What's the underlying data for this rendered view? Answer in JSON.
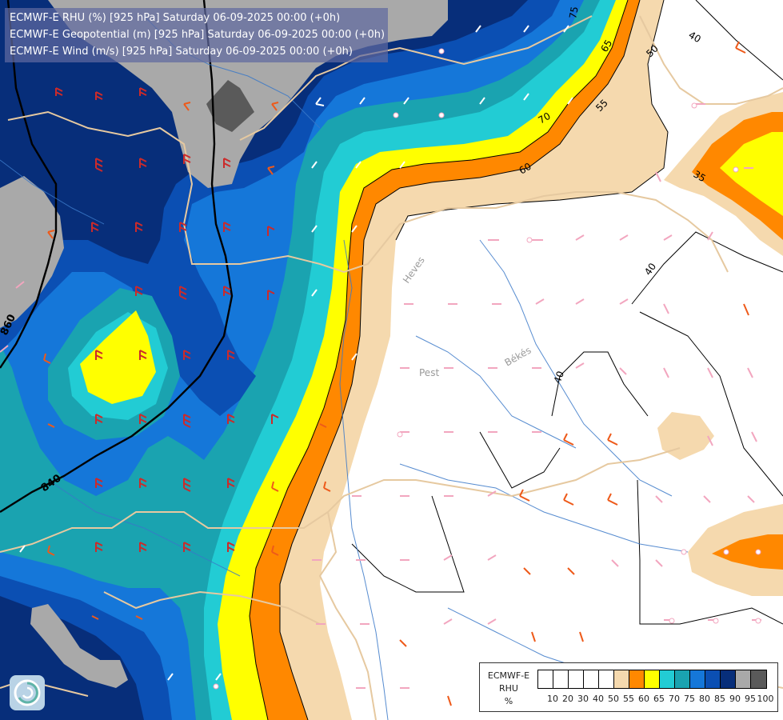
{
  "title": {
    "lines": [
      "ECMWF-E RHU (%) [925 hPa] Saturday 06-09-2025 00:00 (+0h)",
      "ECMWF-E Geopotential (m) [925 hPa] Saturday 06-09-2025 00:00 (+0h)",
      "ECMWF-E Wind (m/s) [925 hPa] Saturday 06-09-2025 00:00 (+0h)"
    ]
  },
  "legend": {
    "model": "ECMWF-E",
    "variable": "RHU",
    "unit": "%",
    "levels": [
      "10",
      "20",
      "30",
      "40",
      "50",
      "55",
      "60",
      "65",
      "70",
      "75",
      "80",
      "85",
      "90",
      "95",
      "100"
    ],
    "colors": [
      "#ffffff",
      "#ffffff",
      "#ffffff",
      "#ffffff",
      "#ffffff",
      "#f5d9ae",
      "#ff8800",
      "#ffff00",
      "#22ccd4",
      "#1aa3b0",
      "#1577d9",
      "#0b4fb3",
      "#072e7a",
      "#a9a9a9",
      "#5a5a5a"
    ]
  },
  "colors": {
    "rh55": "#f5d9ae",
    "rh60": "#ff8800",
    "rh65": "#ffff00",
    "rh70": "#22ccd4",
    "rh75": "#1aa3b0",
    "rh80": "#1577d9",
    "rh85": "#0b4fb3",
    "rh90": "#072e7a",
    "rh95": "#a9a9a9",
    "rh100": "#5a5a5a",
    "border": "#e6c9a0",
    "river": "#3a78c8",
    "barb_red": "#cc2a2a",
    "barb_orange": "#ee5a1a",
    "barb_pink": "#f2a6bf",
    "barb_white": "#ffffff"
  },
  "map_labels": {
    "rh_contours": [
      "75",
      "65",
      "55",
      "70",
      "60",
      "50",
      "40",
      "35",
      "40",
      "40"
    ],
    "geopotential_contours": [
      "860",
      "840"
    ],
    "places": [
      "Heves",
      "Pest",
      "Békés"
    ]
  },
  "logo": "ecmwf-swirl-logo"
}
